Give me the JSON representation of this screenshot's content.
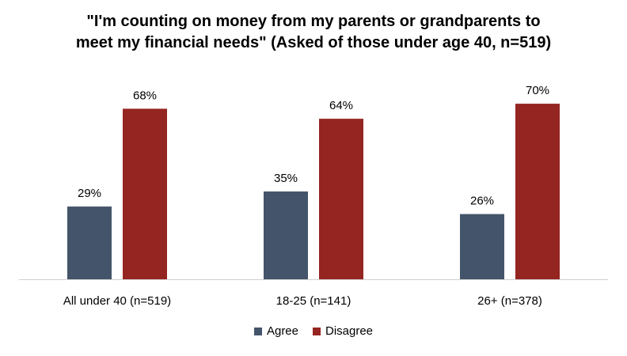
{
  "chart_data": {
    "type": "bar",
    "title_lines": [
      "\"I'm counting on money from my parents or grandparents to",
      "meet my financial needs\" (Asked of those under age 40, n=519)"
    ],
    "categories": [
      "All under 40 (n=519)",
      "18-25 (n=141)",
      "26+ (n=378)"
    ],
    "series": [
      {
        "name": "Agree",
        "color": "#44546a",
        "values": [
          29,
          35,
          26
        ],
        "labels": [
          "29%",
          "35%",
          "26%"
        ]
      },
      {
        "name": "Disagree",
        "color": "#952521",
        "values": [
          68,
          64,
          70
        ],
        "labels": [
          "68%",
          "64%",
          "70%"
        ]
      }
    ],
    "ylim": [
      0,
      70
    ],
    "grid": false,
    "legend_position": "bottom"
  }
}
